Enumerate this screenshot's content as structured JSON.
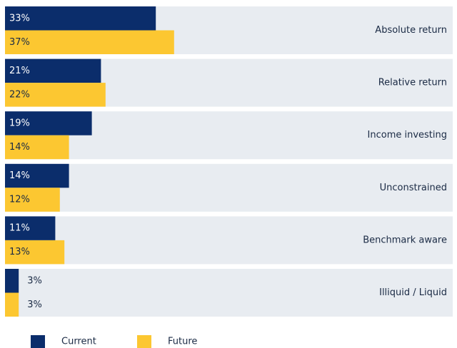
{
  "chart_data": {
    "type": "bar",
    "orientation": "horizontal",
    "categories": [
      "Absolute return",
      "Relative return",
      "Income investing",
      "Unconstrained",
      "Benchmark aware",
      "Illiquid / Liquid"
    ],
    "series": [
      {
        "name": "Current",
        "color": "#0b2d6b",
        "values": [
          33,
          21,
          19,
          14,
          11,
          3
        ],
        "value_labels": [
          "33%",
          "21%",
          "19%",
          "14%",
          "11%",
          "3%"
        ]
      },
      {
        "name": "Future",
        "color": "#fcc731",
        "values": [
          37,
          22,
          14,
          12,
          13,
          3
        ],
        "value_labels": [
          "37%",
          "22%",
          "14%",
          "12%",
          "13%",
          "3%"
        ]
      }
    ],
    "legend": "bottom-left"
  }
}
